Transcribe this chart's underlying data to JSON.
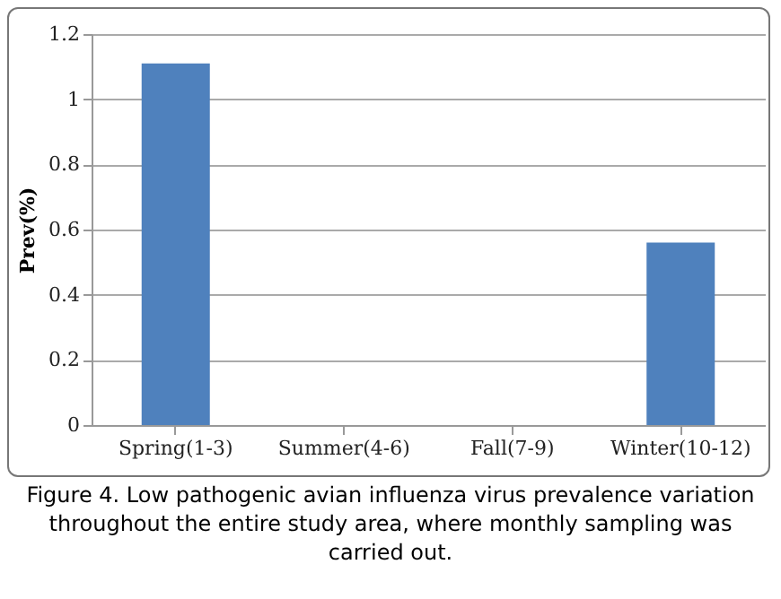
{
  "chart_data": {
    "type": "bar",
    "categories": [
      "Spring(1-3)",
      "Summer(4-6)",
      "Fall(7-9)",
      "Winter(10-12)"
    ],
    "values": [
      1.11,
      0,
      0,
      0.56
    ],
    "color": "#4f81bd",
    "ylabel": "Prev(%)",
    "ylim": [
      0,
      1.2
    ],
    "yticks": [
      0,
      0.2,
      0.4,
      0.6,
      0.8,
      1,
      1.2
    ],
    "grid": "y",
    "annotations": [
      "Figure 4. Low pathogenic avian influenza virus prevalence variation throughout the entire study area, where monthly sampling was carried out."
    ]
  }
}
